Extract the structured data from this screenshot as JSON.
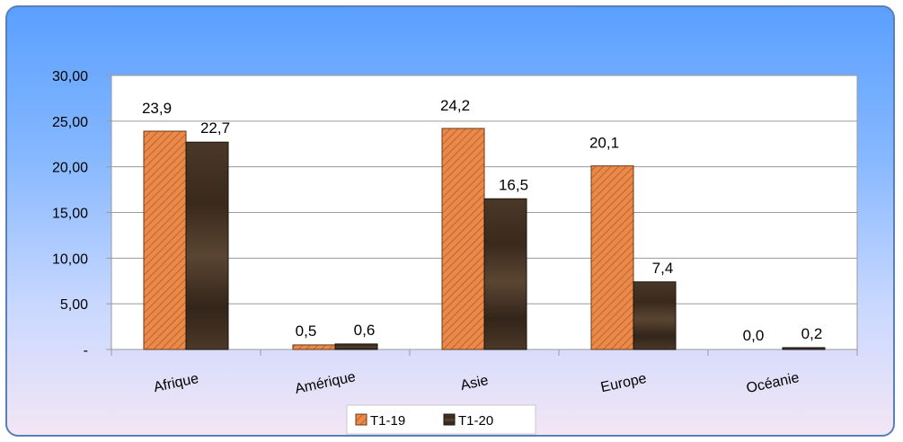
{
  "chart_data": {
    "type": "bar",
    "categories": [
      "Afrique",
      "Amérique",
      "Asie",
      "Europe",
      "Océanie"
    ],
    "series": [
      {
        "name": "T1-19",
        "values": [
          23.9,
          0.5,
          24.2,
          20.1,
          0.0
        ],
        "labels": [
          "23,9",
          "0,5",
          "24,2",
          "20,1",
          "0,0"
        ],
        "color": "#e07b39"
      },
      {
        "name": "T1-20",
        "values": [
          22.7,
          0.6,
          16.5,
          7.4,
          0.2
        ],
        "labels": [
          "22,7",
          "0,6",
          "16,5",
          "7,4",
          "0,2"
        ],
        "color": "#3a2a1e"
      }
    ],
    "yticks": [
      0,
      5,
      10,
      15,
      20,
      25,
      30
    ],
    "ytick_labels": [
      "-",
      "5,00",
      "10,00",
      "15,00",
      "20,00",
      "25,00",
      "30,00"
    ],
    "ylim": [
      0,
      30
    ],
    "grid": true,
    "legend": "bottom-center",
    "title": "",
    "xlabel": "",
    "ylabel": ""
  }
}
